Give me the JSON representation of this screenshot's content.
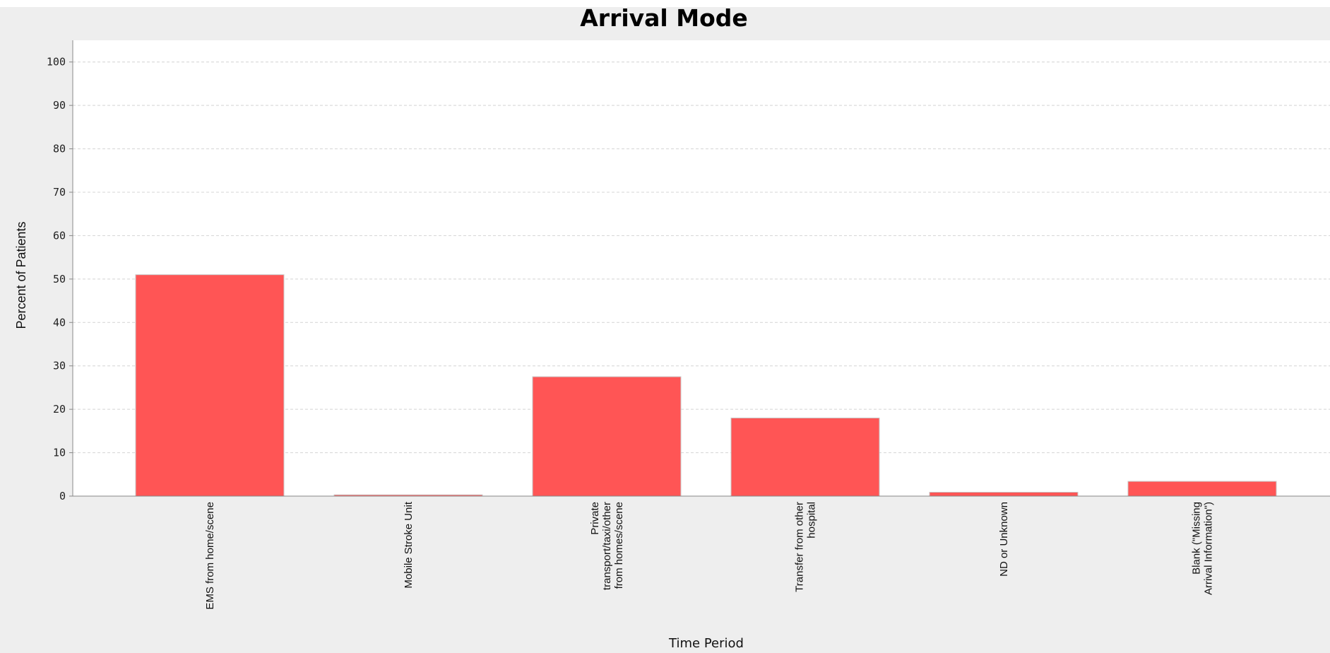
{
  "chart_data": {
    "type": "bar",
    "title": "Arrival Mode",
    "xlabel": "Time Period",
    "ylabel": "Percent of Patients",
    "ylim": [
      0,
      105
    ],
    "yticks": [
      0,
      10,
      20,
      30,
      40,
      50,
      60,
      70,
      80,
      90,
      100
    ],
    "grid": true,
    "categories": [
      [
        "EMS from home/scene"
      ],
      [
        "Mobile Stroke Unit"
      ],
      [
        "Private",
        "transport/taxi/other",
        "from homes/scene"
      ],
      [
        "Transfer from other",
        "hospital"
      ],
      [
        "ND or Unknown"
      ],
      [
        "Blank (\"Missing",
        "Arrival Information\")"
      ]
    ],
    "series": [
      {
        "values": [
          51,
          0.3,
          27.5,
          18,
          0.9,
          3.4
        ],
        "color": "#ff5555"
      }
    ]
  }
}
